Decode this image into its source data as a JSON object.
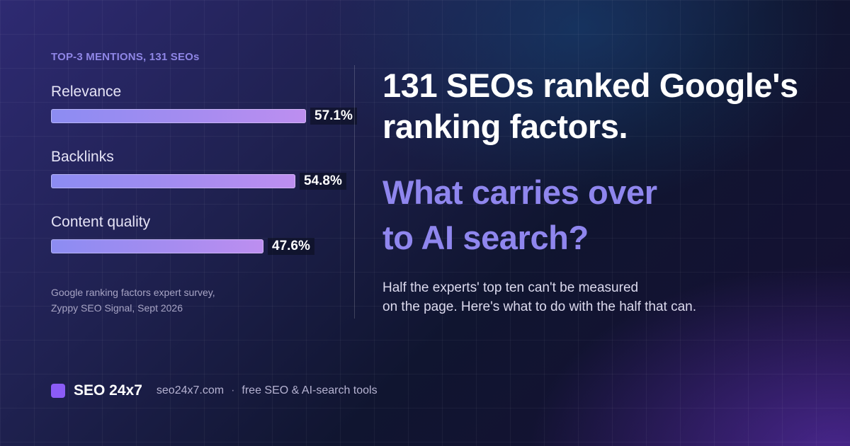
{
  "panel": {
    "label": "TOP-3 MENTIONS, 131 SEOs",
    "source_line1": "Google ranking factors expert survey,",
    "source_line2": "Zyppy SEO Signal, Sept 2026"
  },
  "chart_data": {
    "type": "bar",
    "orientation": "horizontal",
    "title": "TOP-3 MENTIONS, 131 SEOs",
    "categories": [
      "Relevance",
      "Backlinks",
      "Content quality"
    ],
    "values": [
      57.1,
      54.8,
      47.6
    ],
    "value_labels": [
      "57.1%",
      "54.8%",
      "47.6%"
    ],
    "unit": "%",
    "xlim": [
      0,
      57.1
    ],
    "grid": false,
    "legend": "none",
    "colors": {
      "bar_start": "#8c8cf2",
      "bar_end": "#bd8ef0"
    }
  },
  "headline": {
    "line1": "131 SEOs ranked Google's",
    "line2": "ranking factors."
  },
  "subhead": {
    "line1": "What carries over",
    "line2": "to AI search?"
  },
  "body": {
    "line1": "Half the experts' top ten can't be measured",
    "line2": "on the page. Here's what to do with the half that can."
  },
  "footer": {
    "brand": "SEO 24x7",
    "domain": "seo24x7.com",
    "separator": "·",
    "tagline": "free SEO & AI-search tools"
  },
  "colors": {
    "accent": "#8b5cf6",
    "subhead": "#8f86ee",
    "label": "#8f86e6"
  }
}
